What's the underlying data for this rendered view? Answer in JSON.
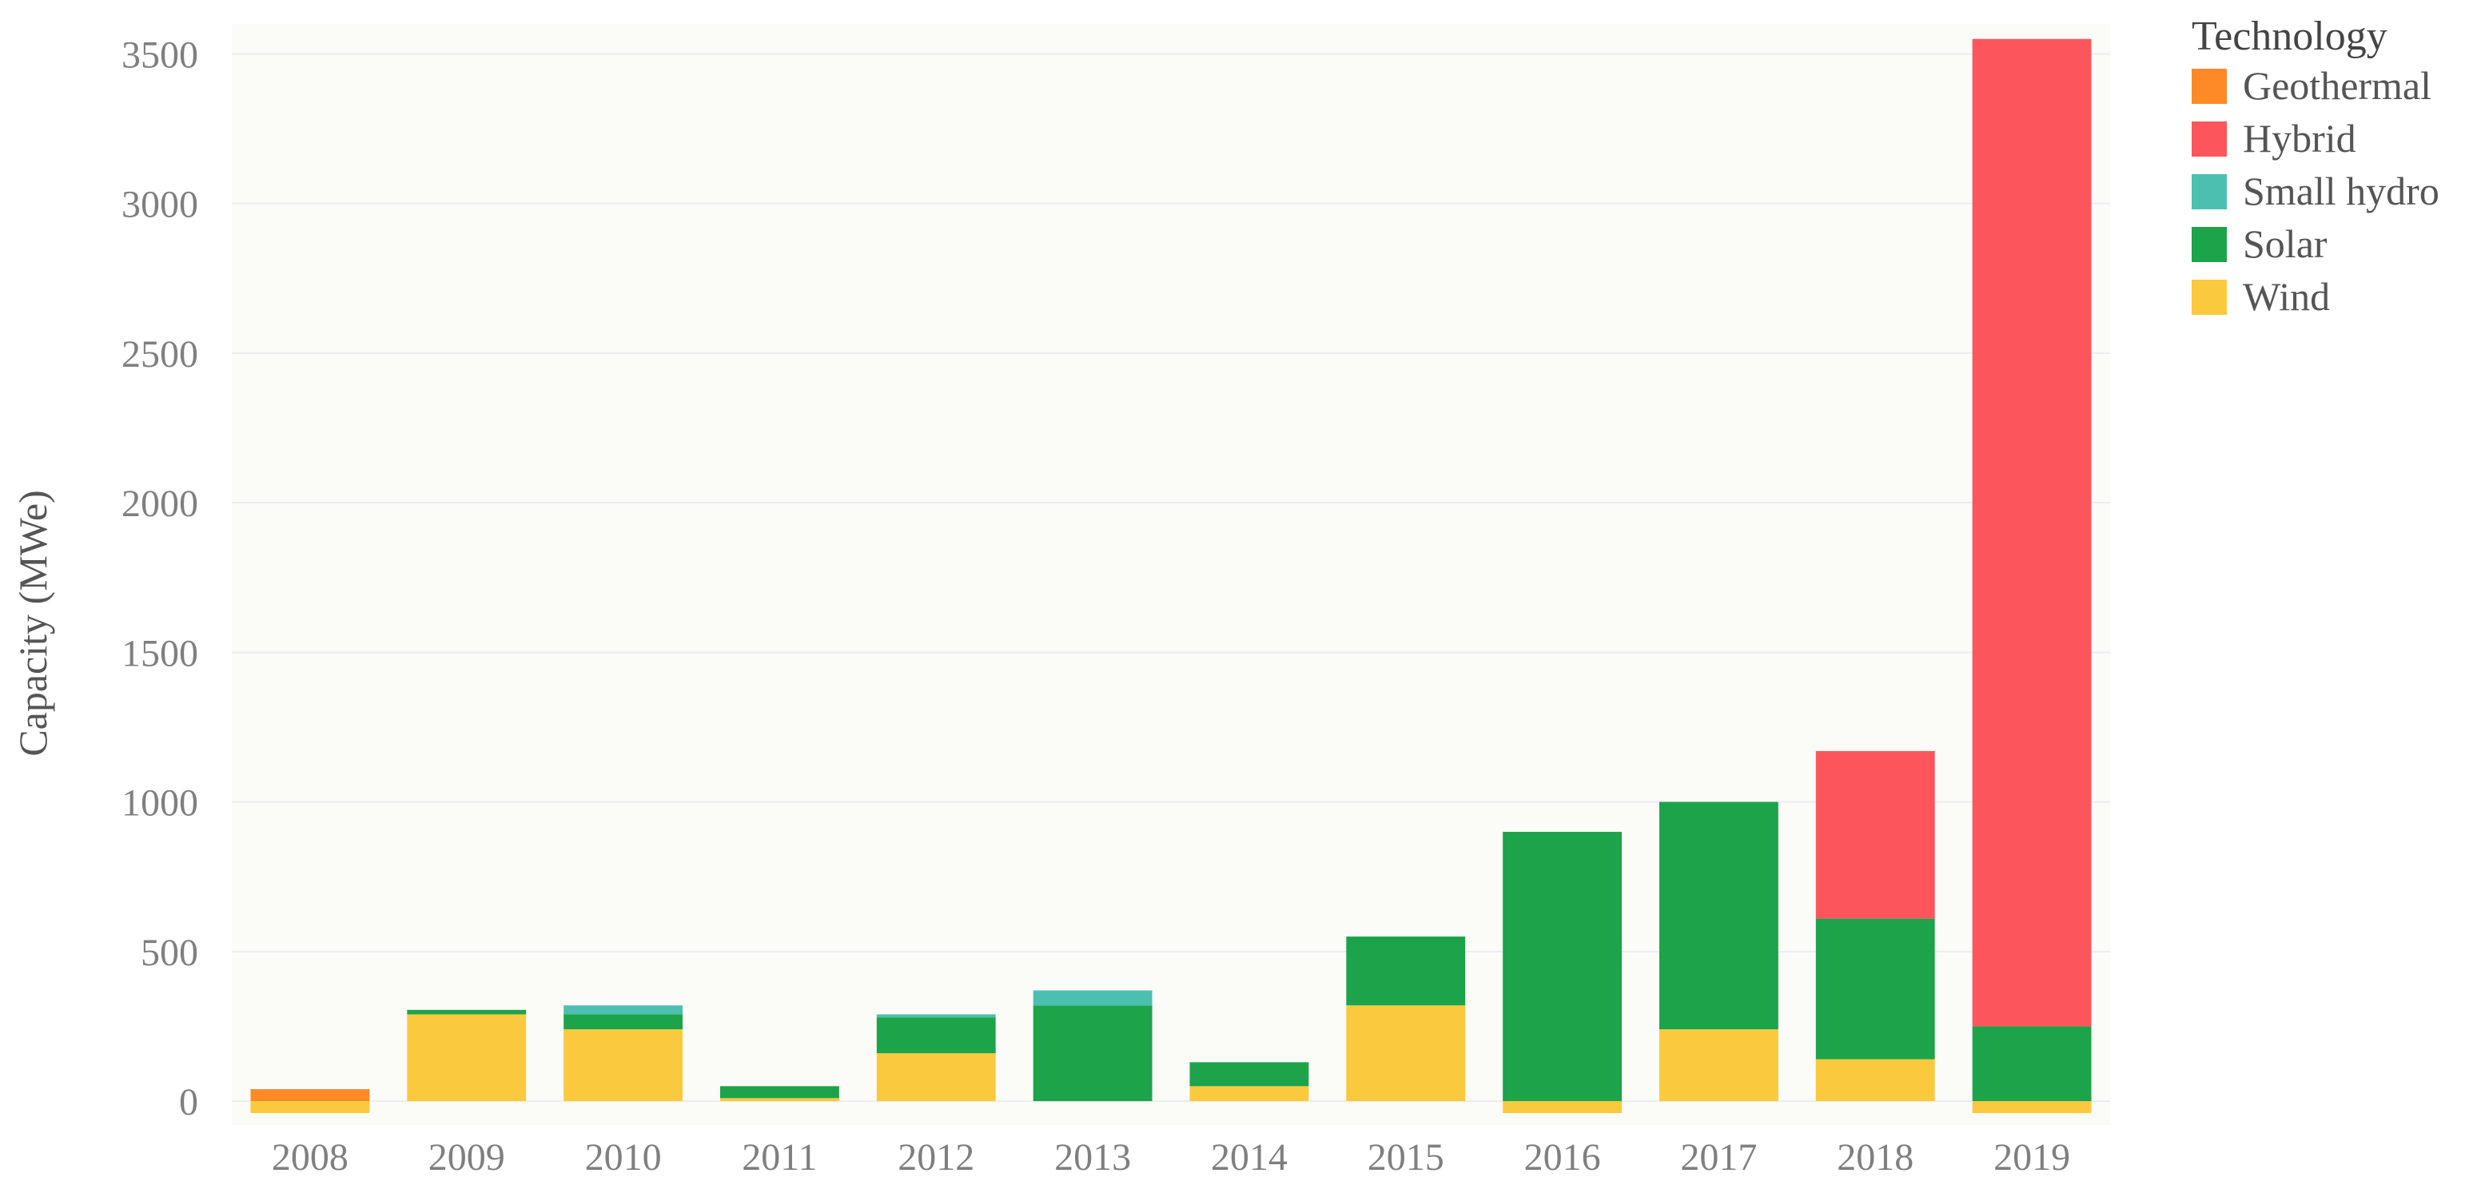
{
  "chart_data": {
    "type": "bar",
    "stacked": true,
    "title": "",
    "xlabel": "",
    "ylabel": "Capacity (MWe)",
    "ylim": [
      -80,
      3600
    ],
    "yticks": [
      0,
      500,
      1000,
      1500,
      2000,
      2500,
      3000,
      3500
    ],
    "grid": true,
    "legend": {
      "title": "Technology",
      "position": "top-right"
    },
    "categories": [
      "2008",
      "2009",
      "2010",
      "2011",
      "2012",
      "2013",
      "2014",
      "2015",
      "2016",
      "2017",
      "2018",
      "2019"
    ],
    "series": [
      {
        "name": "Wind",
        "color": "#FBC93D",
        "values": [
          -40,
          290,
          240,
          10,
          160,
          0,
          50,
          320,
          -40,
          240,
          140,
          -40
        ]
      },
      {
        "name": "Solar",
        "color": "#1DA34A",
        "values": [
          0,
          15,
          50,
          40,
          120,
          320,
          80,
          230,
          900,
          760,
          470,
          250
        ]
      },
      {
        "name": "Small hydro",
        "color": "#4CBFB1",
        "values": [
          0,
          0,
          30,
          0,
          10,
          50,
          0,
          0,
          0,
          0,
          0,
          0
        ]
      },
      {
        "name": "Hybrid",
        "color": "#FC565C",
        "values": [
          0,
          0,
          0,
          0,
          0,
          0,
          0,
          0,
          0,
          0,
          560,
          3300
        ]
      },
      {
        "name": "Geothermal",
        "color": "#FD8A27",
        "values": [
          40,
          0,
          0,
          0,
          0,
          0,
          0,
          0,
          0,
          0,
          0,
          0
        ]
      }
    ],
    "legend_order": [
      "Geothermal",
      "Hybrid",
      "Small hydro",
      "Solar",
      "Wind"
    ],
    "background": "#FBFBF8"
  }
}
